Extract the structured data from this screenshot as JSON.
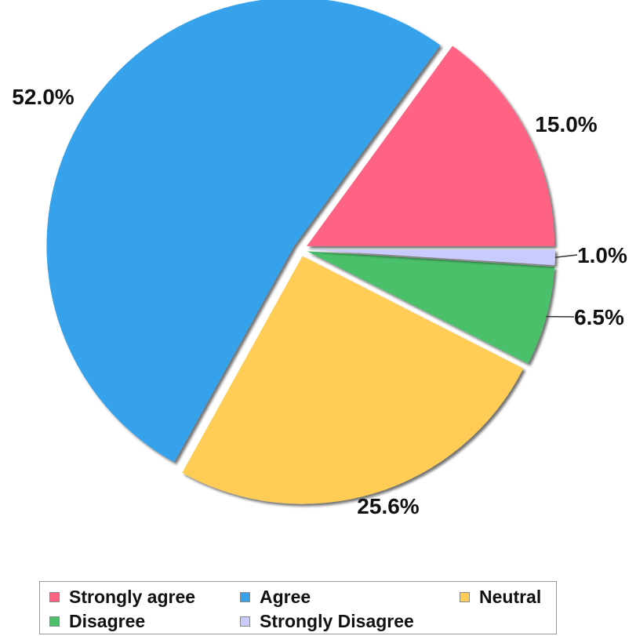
{
  "chart_data": {
    "type": "pie",
    "title": "",
    "categories": [
      "Strongly agree",
      "Agree",
      "Neutral",
      "Disagree",
      "Strongly Disagree"
    ],
    "values": [
      15.0,
      52.0,
      25.6,
      6.5,
      1.0
    ],
    "value_labels": [
      "15.0%",
      "52.0%",
      "25.6%",
      "6.5%",
      "1.0%"
    ],
    "colors": [
      "#FF6384",
      "#36A2EB",
      "#FFCD56",
      "#4BC06A",
      "#C9CBFF"
    ],
    "exploded": true,
    "legend_position": "bottom"
  }
}
